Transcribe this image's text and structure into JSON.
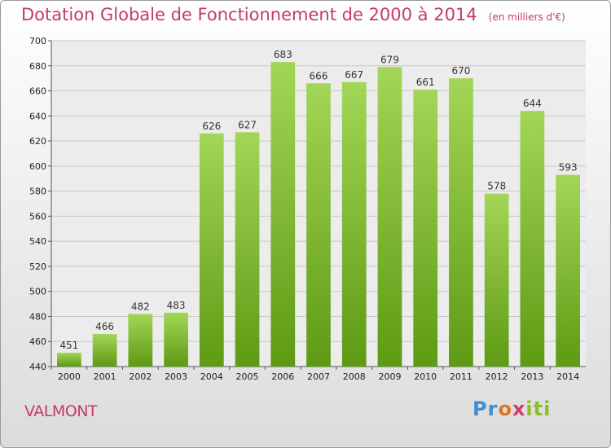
{
  "header": {
    "title": "Dotation Globale de Fonctionnement de 2000 à 2014",
    "unit": "(en milliers d'€)"
  },
  "commune": "VALMONT",
  "logo": {
    "text": "Proxiti"
  },
  "colors": {
    "bar_top": "#9ed24e",
    "bar_bottom": "#5e9a14",
    "title": "#c43a6e"
  },
  "chart_data": {
    "type": "bar",
    "title": "Dotation Globale de Fonctionnement de 2000 à 2014",
    "subtitle": "(en milliers d'€)",
    "categories": [
      "2000",
      "2001",
      "2002",
      "2003",
      "2004",
      "2005",
      "2006",
      "2007",
      "2008",
      "2009",
      "2010",
      "2011",
      "2012",
      "2013",
      "2014"
    ],
    "values": [
      451,
      466,
      482,
      483,
      626,
      627,
      683,
      666,
      667,
      679,
      661,
      670,
      578,
      644,
      593
    ],
    "ylim": [
      440,
      700
    ],
    "yticks": [
      440,
      460,
      480,
      500,
      520,
      540,
      560,
      580,
      600,
      620,
      640,
      660,
      680,
      700
    ],
    "grid": true,
    "xlabel": "",
    "ylabel": ""
  }
}
